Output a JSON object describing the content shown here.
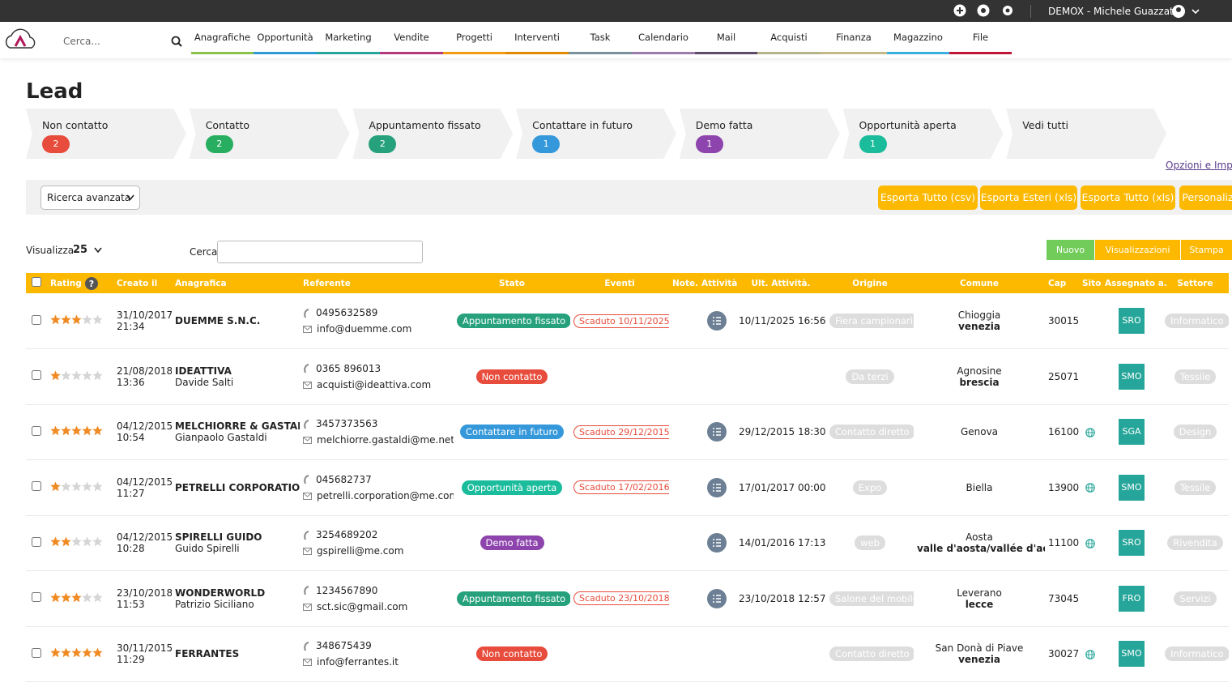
{
  "topbar": {
    "user": "DEMOX - Michele Guazzato"
  },
  "nav": {
    "search_placeholder": "Cerca...",
    "items": [
      {
        "label": "Anagrafiche",
        "color": "#8bc34a"
      },
      {
        "label": "Opportunità",
        "color": "#2e9bd6"
      },
      {
        "label": "Marketing",
        "color": "#26a69a"
      },
      {
        "label": "Vendite",
        "color": "#b03a7a"
      },
      {
        "label": "Progetti",
        "color": "#f39c12"
      },
      {
        "label": "Interventi",
        "color": "#e08a00"
      },
      {
        "label": "Task",
        "color": "#78909c"
      },
      {
        "label": "Calendario",
        "color": "#9c7ba8"
      },
      {
        "label": "Mail",
        "color": "#5d4d6a"
      },
      {
        "label": "Acquisti",
        "color": "#b5b58a"
      },
      {
        "label": "Finanza",
        "color": "#c5b98a"
      },
      {
        "label": "Magazzino",
        "color": "#3ab0e0"
      },
      {
        "label": "File",
        "color": "#c0163a"
      }
    ]
  },
  "page": {
    "title": "Lead"
  },
  "stages": [
    {
      "label": "Non contatto",
      "count": 2,
      "color": "#e74c3c"
    },
    {
      "label": "Contatto",
      "count": 2,
      "color": "#27ae60"
    },
    {
      "label": "Appuntamento fissato",
      "count": 2,
      "color": "#26a17b"
    },
    {
      "label": "Contattare in futuro",
      "count": 1,
      "color": "#3498db"
    },
    {
      "label": "Demo fatta",
      "count": 1,
      "color": "#8e44ad"
    },
    {
      "label": "Opportunità aperta",
      "count": 1,
      "color": "#1abc9c"
    },
    {
      "label": "Vedi tutti"
    }
  ],
  "options_link": "Opzioni e Imp",
  "filter": {
    "advanced": "Ricerca avanzata",
    "buttons": [
      "Esporta Tutto (csv)",
      "Esporta Esteri (xls)",
      "Esporta Tutto (xls)",
      "Personaliz"
    ]
  },
  "controls": {
    "show_label": "Visualizza",
    "show_value": 25,
    "search_label": "Cerca",
    "buttons": [
      {
        "label": "Nuovo",
        "color": "#72cc5a"
      },
      {
        "label": "Visualizzazioni",
        "color": "#fcb900"
      },
      {
        "label": "Stampa",
        "color": "#fcb900"
      }
    ]
  },
  "table": {
    "columns": [
      "Rating",
      "Creato il",
      "Anagrafica",
      "Referente",
      "Stato",
      "Eventi",
      "Note.",
      "Attività",
      "Ult. Attività.",
      "Origine",
      "Comune",
      "Cap",
      "Sito",
      "Assegnato a.",
      "Settore"
    ],
    "rows": [
      {
        "rating": 3,
        "date": "31/10/2017",
        "time": "21:34",
        "name": "DUEMME S.N.C.",
        "phone": "0495632589",
        "email": "info@duemme.com",
        "stato": "Appuntamento fissato",
        "stato_color": "#26a17b",
        "event": "Scaduto 10/11/2025",
        "activity": true,
        "last": "10/11/2025 16:56",
        "origine": "Fiera campionaria",
        "city": "Chioggia",
        "province": "venezia",
        "cap": "30015",
        "site": false,
        "assigned": "SRO",
        "settore": "Informatico"
      },
      {
        "rating": 1,
        "date": "21/08/2018",
        "time": "13:36",
        "name": "IDEATTIVA",
        "contact": "Davide Salti",
        "phone": "0365 896013",
        "email": "acquisti@ideattiva.com",
        "stato": "Non contatto",
        "stato_color": "#e74c3c",
        "activity": false,
        "origine": "Da terzi",
        "city": "Agnosine",
        "province": "brescia",
        "cap": "25071",
        "site": false,
        "assigned": "SMO",
        "settore": "Tessile"
      },
      {
        "rating": 5,
        "date": "04/12/2015",
        "time": "10:54",
        "name": "MELCHIORRE & GASTALDI",
        "contact": "Gianpaolo Gastaldi",
        "phone": "3457373563",
        "email": "melchiorre.gastaldi@me.net",
        "stato": "Contattare in futuro",
        "stato_color": "#3498db",
        "event": "Scaduto 29/12/2015",
        "activity": true,
        "last": "29/12/2015 18:30",
        "origine": "Contatto diretto",
        "city": "Genova",
        "cap": "16100",
        "site": true,
        "assigned": "SGA",
        "settore": "Design"
      },
      {
        "rating": 1,
        "date": "04/12/2015",
        "time": "11:27",
        "name": "PETRELLI CORPORATION",
        "phone": "045682737",
        "email": "petrelli.corporation@me.com",
        "stato": "Opportunità aperta",
        "stato_color": "#1abc9c",
        "event": "Scaduto 17/02/2016",
        "activity": true,
        "last": "17/01/2017 00:00",
        "origine": "Expo",
        "city": "Biella",
        "cap": "13900",
        "site": true,
        "assigned": "SMO",
        "settore": "Tessile"
      },
      {
        "rating": 2,
        "date": "04/12/2015",
        "time": "10:28",
        "name": "SPIRELLI GUIDO",
        "contact": "Guido Spirelli",
        "phone": "3254689202",
        "email": "gspirelli@me.com",
        "stato": "Demo fatta",
        "stato_color": "#8e44ad",
        "activity": true,
        "last": "14/01/2016 17:13",
        "origine": "web",
        "city": "Aosta",
        "province": "valle d'aosta/vallée d'aoste",
        "cap": "11100",
        "site": true,
        "assigned": "SRO",
        "settore": "Rivendita"
      },
      {
        "rating": 3,
        "date": "23/10/2018",
        "time": "11:53",
        "name": "WONDERWORLD",
        "contact": "Patrizio Siciliano",
        "phone": "1234567890",
        "email": "sct.sic@gmail.com",
        "stato": "Appuntamento fissato",
        "stato_color": "#26a17b",
        "event": "Scaduto 23/10/2018",
        "activity": true,
        "last": "23/10/2018 12:57",
        "origine": "Salone del mobile",
        "city": "Leverano",
        "province": "lecce",
        "cap": "73045",
        "site": false,
        "assigned": "FRO",
        "settore": "Servizi"
      },
      {
        "rating": 5,
        "date": "30/11/2015",
        "time": "11:29",
        "name": "FERRANTES",
        "phone": "348675439",
        "email": "info@ferrantes.it",
        "stato": "Non contatto",
        "stato_color": "#e74c3c",
        "activity": false,
        "origine": "Contatto diretto",
        "city": "San Donà di Piave",
        "province": "venezia",
        "cap": "30027",
        "site": true,
        "assigned": "SMO",
        "settore": "Informatico"
      }
    ]
  }
}
